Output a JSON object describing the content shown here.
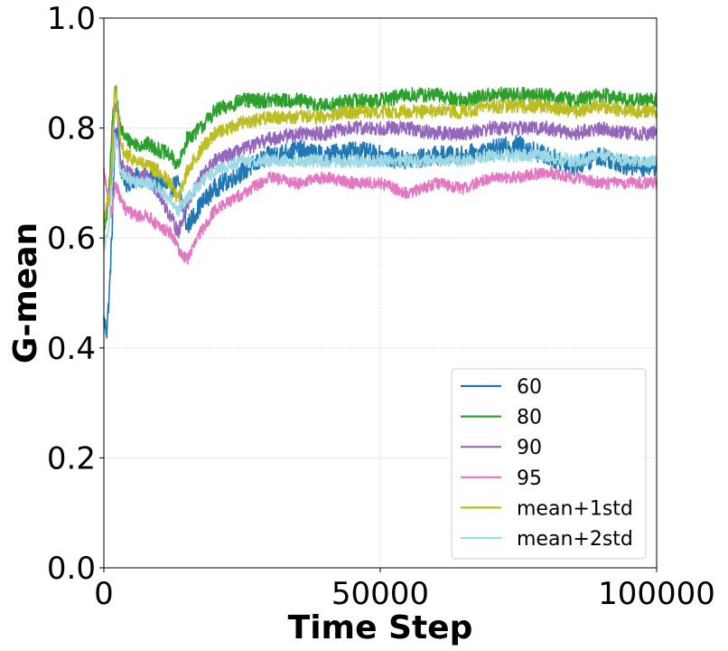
{
  "chart_data": {
    "type": "line",
    "title": "",
    "xlabel": "Time Step",
    "ylabel": "G-mean",
    "xlim": [
      0,
      100000
    ],
    "ylim": [
      0.0,
      1.0
    ],
    "xticks": [
      0,
      50000,
      100000
    ],
    "xtick_labels": [
      "0",
      "50000",
      "100000"
    ],
    "yticks": [
      0.0,
      0.2,
      0.4,
      0.6,
      0.8,
      1.0
    ],
    "ytick_labels": [
      "0.0",
      "0.2",
      "0.4",
      "0.6",
      "0.8",
      "1.0"
    ],
    "grid": true,
    "legend_position": "lower-right",
    "x": [
      0,
      500,
      1000,
      1500,
      2000,
      2500,
      3000,
      4000,
      6000,
      8000,
      10000,
      12000,
      13500,
      15000,
      17500,
      20000,
      25000,
      30000,
      35000,
      40000,
      45000,
      50000,
      55000,
      60000,
      65000,
      70000,
      75000,
      80000,
      85000,
      90000,
      95000,
      100000
    ],
    "series": [
      {
        "name": "60",
        "color": "#1f77b4",
        "noise": 0.018,
        "values": [
          0.45,
          0.43,
          0.5,
          0.62,
          0.78,
          0.8,
          0.73,
          0.7,
          0.71,
          0.71,
          0.7,
          0.69,
          0.7,
          0.62,
          0.66,
          0.69,
          0.72,
          0.75,
          0.76,
          0.75,
          0.76,
          0.75,
          0.74,
          0.75,
          0.75,
          0.76,
          0.77,
          0.75,
          0.73,
          0.75,
          0.73,
          0.73
        ]
      },
      {
        "name": "80",
        "color": "#2ca02c",
        "noise": 0.014,
        "values": [
          0.6,
          0.64,
          0.7,
          0.8,
          0.88,
          0.84,
          0.8,
          0.78,
          0.77,
          0.77,
          0.76,
          0.75,
          0.73,
          0.78,
          0.8,
          0.83,
          0.85,
          0.85,
          0.85,
          0.84,
          0.85,
          0.85,
          0.86,
          0.86,
          0.85,
          0.86,
          0.86,
          0.86,
          0.85,
          0.86,
          0.85,
          0.85
        ]
      },
      {
        "name": "90",
        "color": "#9467bd",
        "noise": 0.013,
        "values": [
          0.63,
          0.66,
          0.68,
          0.72,
          0.85,
          0.82,
          0.74,
          0.72,
          0.71,
          0.71,
          0.68,
          0.64,
          0.61,
          0.66,
          0.71,
          0.74,
          0.76,
          0.78,
          0.79,
          0.79,
          0.8,
          0.8,
          0.8,
          0.79,
          0.79,
          0.8,
          0.8,
          0.8,
          0.79,
          0.8,
          0.79,
          0.79
        ]
      },
      {
        "name": "95",
        "color": "#e377c2",
        "noise": 0.011,
        "values": [
          0.72,
          0.69,
          0.66,
          0.64,
          0.7,
          0.69,
          0.67,
          0.65,
          0.64,
          0.64,
          0.62,
          0.61,
          0.58,
          0.56,
          0.61,
          0.65,
          0.68,
          0.71,
          0.7,
          0.71,
          0.7,
          0.7,
          0.68,
          0.7,
          0.69,
          0.71,
          0.71,
          0.72,
          0.71,
          0.7,
          0.7,
          0.7
        ]
      },
      {
        "name": "mean+1std",
        "color": "#bcbd22",
        "noise": 0.013,
        "values": [
          0.64,
          0.66,
          0.68,
          0.75,
          0.87,
          0.83,
          0.77,
          0.75,
          0.74,
          0.73,
          0.72,
          0.7,
          0.67,
          0.72,
          0.76,
          0.79,
          0.81,
          0.82,
          0.82,
          0.82,
          0.83,
          0.83,
          0.83,
          0.83,
          0.83,
          0.84,
          0.84,
          0.84,
          0.83,
          0.84,
          0.83,
          0.83
        ]
      },
      {
        "name": "mean+2std",
        "color": "#9edae5",
        "noise": 0.012,
        "values": [
          0.58,
          0.6,
          0.64,
          0.7,
          0.78,
          0.76,
          0.72,
          0.71,
          0.7,
          0.7,
          0.69,
          0.67,
          0.65,
          0.67,
          0.7,
          0.72,
          0.74,
          0.74,
          0.74,
          0.74,
          0.74,
          0.74,
          0.74,
          0.74,
          0.74,
          0.75,
          0.75,
          0.75,
          0.74,
          0.75,
          0.74,
          0.74
        ]
      }
    ]
  }
}
